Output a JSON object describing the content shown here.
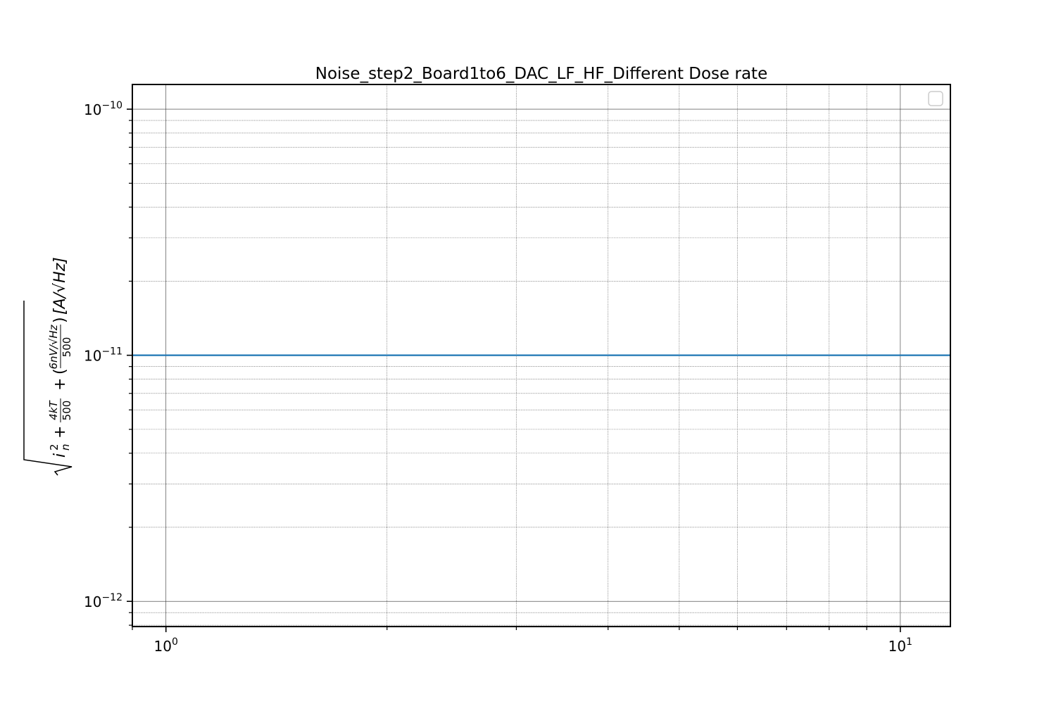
{
  "chart_data": {
    "type": "line",
    "title": "Noise_step2_Board1to6_DAC_LF_HF_Different Dose rate",
    "xscale": "log",
    "yscale": "log",
    "xlim": [
      0.9,
      11.7
    ],
    "ylim": [
      7.9e-13,
      1.26e-10
    ],
    "x_major_ticks": [
      {
        "value": 1,
        "base": "10",
        "exp": "0"
      },
      {
        "value": 10,
        "base": "10",
        "exp": "1"
      }
    ],
    "y_major_ticks": [
      {
        "value": 1e-12,
        "base": "10",
        "exp": "−12"
      },
      {
        "value": 1e-11,
        "base": "10",
        "exp": "−11"
      },
      {
        "value": 1e-10,
        "base": "10",
        "exp": "−10"
      }
    ],
    "ylabel": {
      "i": "i",
      "sup2": "2",
      "subn": "n",
      "plus": "+",
      "frac1_num": "4kT",
      "frac1_den": "500",
      "frac2_num": "6nV/√Hz",
      "frac2_den": "500",
      "units": "[A/√Hz]"
    },
    "grid": true,
    "legend": {
      "placement": "upper right",
      "entries": []
    },
    "series": [
      {
        "x": [
          0.9,
          11.7
        ],
        "y": [
          1e-11,
          1e-11
        ],
        "color": "#1f77b4"
      }
    ]
  }
}
